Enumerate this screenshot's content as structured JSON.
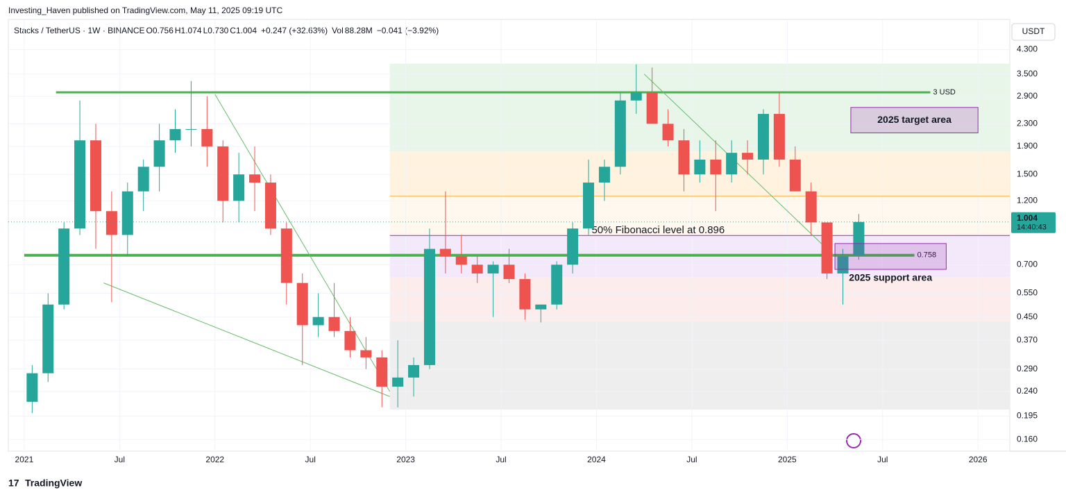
{
  "header": {
    "publisher": "Investing_Haven published on TradingView.com, May 11, 2025 09:19 UTC",
    "symbol": "Stacks / TetherUS · 1W · BINANCE",
    "legend": [
      {
        "k": "O",
        "v": "0.756"
      },
      {
        "k": "H",
        "v": "1.074"
      },
      {
        "k": "L",
        "v": "0.730"
      },
      {
        "k": "C",
        "v": "1.004"
      }
    ],
    "change": "+0.247 (+32.63%)",
    "vol_label": "Vol",
    "vol": "88.28M",
    "vol_change": "−0.041 (−3.92%)",
    "currency": "USDT",
    "countdown": "14:40:43",
    "brand": "TradingView"
  },
  "chart_data": {
    "type": "candlestick",
    "log_scale": true,
    "grid": true,
    "up_color": "#26a69a",
    "down_color": "#ef5350",
    "x": [
      "2021-01",
      "2021-02",
      "2021-03",
      "2021-04",
      "2021-05",
      "2021-06",
      "2021-07",
      "2021-08",
      "2021-09",
      "2021-10",
      "2021-11",
      "2021-12",
      "2022-01",
      "2022-02",
      "2022-03",
      "2022-04",
      "2022-05",
      "2022-06",
      "2022-07",
      "2022-08",
      "2022-09",
      "2022-10",
      "2022-11",
      "2022-12",
      "2023-01",
      "2023-02",
      "2023-03",
      "2023-04",
      "2023-05",
      "2023-06",
      "2023-07",
      "2023-08",
      "2023-09",
      "2023-10",
      "2023-11",
      "2023-12",
      "2024-01",
      "2024-02",
      "2024-03",
      "2024-04",
      "2024-05",
      "2024-06",
      "2024-07",
      "2024-08",
      "2024-09",
      "2024-10",
      "2024-11",
      "2024-12",
      "2025-01",
      "2025-02",
      "2025-03",
      "2025-04",
      "2025-05"
    ],
    "open": [
      0.22,
      0.28,
      0.5,
      0.95,
      2.0,
      1.1,
      0.9,
      1.3,
      1.6,
      2.0,
      2.2,
      2.2,
      1.9,
      1.2,
      1.5,
      1.4,
      0.95,
      0.6,
      0.42,
      0.45,
      0.4,
      0.34,
      0.32,
      0.25,
      0.27,
      0.3,
      0.8,
      0.75,
      0.7,
      0.65,
      0.7,
      0.62,
      0.48,
      0.5,
      0.7,
      0.95,
      1.4,
      1.6,
      2.8,
      3.0,
      2.3,
      2.0,
      1.5,
      1.7,
      1.5,
      1.8,
      1.7,
      2.5,
      1.7,
      1.3,
      1.0,
      0.65,
      0.756
    ],
    "high": [
      0.3,
      0.55,
      1.0,
      2.8,
      2.3,
      1.3,
      1.4,
      1.7,
      2.3,
      2.6,
      3.3,
      2.9,
      2.0,
      1.8,
      1.9,
      1.5,
      1.0,
      0.65,
      0.55,
      0.6,
      0.45,
      0.38,
      0.34,
      0.37,
      0.32,
      0.95,
      1.3,
      0.9,
      0.75,
      0.72,
      0.8,
      0.65,
      0.5,
      0.72,
      1.0,
      1.7,
      1.7,
      3.0,
      3.8,
      3.7,
      2.6,
      2.2,
      2.0,
      2.0,
      2.0,
      2.0,
      2.6,
      3.0,
      1.9,
      1.4,
      1.0,
      0.8,
      1.074
    ],
    "low": [
      0.2,
      0.26,
      0.48,
      0.9,
      0.8,
      0.51,
      0.75,
      1.1,
      1.3,
      1.8,
      1.9,
      1.6,
      1.0,
      1.0,
      1.1,
      0.9,
      0.5,
      0.3,
      0.38,
      0.38,
      0.32,
      0.29,
      0.21,
      0.21,
      0.23,
      0.29,
      0.65,
      0.65,
      0.6,
      0.45,
      0.6,
      0.44,
      0.43,
      0.48,
      0.65,
      0.9,
      1.2,
      1.5,
      2.5,
      2.3,
      1.9,
      1.3,
      1.4,
      1.1,
      1.4,
      1.5,
      1.5,
      1.6,
      1.3,
      0.9,
      0.62,
      0.5,
      0.73
    ],
    "close": [
      0.28,
      0.5,
      0.95,
      2.0,
      1.1,
      0.9,
      1.3,
      1.6,
      2.0,
      2.2,
      2.2,
      1.9,
      1.2,
      1.5,
      1.4,
      0.95,
      0.6,
      0.42,
      0.45,
      0.4,
      0.34,
      0.32,
      0.25,
      0.27,
      0.3,
      0.8,
      0.75,
      0.7,
      0.65,
      0.7,
      0.62,
      0.48,
      0.5,
      0.7,
      0.95,
      1.4,
      1.6,
      2.8,
      3.0,
      2.3,
      2.0,
      1.5,
      1.7,
      1.5,
      1.8,
      1.7,
      2.5,
      1.7,
      1.3,
      1.0,
      0.65,
      0.75,
      1.004
    ],
    "xlim": [
      "2020-12",
      "2026-03"
    ],
    "xticks": [
      {
        "value": "2021-01",
        "label": "2021"
      },
      {
        "value": "2021-07",
        "label": "Jul"
      },
      {
        "value": "2022-01",
        "label": "2022"
      },
      {
        "value": "2022-07",
        "label": "Jul"
      },
      {
        "value": "2023-01",
        "label": "2023"
      },
      {
        "value": "2023-07",
        "label": "Jul"
      },
      {
        "value": "2024-01",
        "label": "2024"
      },
      {
        "value": "2024-07",
        "label": "Jul"
      },
      {
        "value": "2025-01",
        "label": "2025"
      },
      {
        "value": "2025-07",
        "label": "Jul"
      },
      {
        "value": "2026-01",
        "label": "2026"
      }
    ],
    "ylim": [
      0.145,
      5.55
    ],
    "yticks": [
      {
        "value": 4.3,
        "label": "4.300"
      },
      {
        "value": 3.5,
        "label": "3.500"
      },
      {
        "value": 2.9,
        "label": "2.900"
      },
      {
        "value": 2.3,
        "label": "2.300"
      },
      {
        "value": 1.9,
        "label": "1.900"
      },
      {
        "value": 1.5,
        "label": "1.500"
      },
      {
        "value": 1.2,
        "label": "1.200"
      },
      {
        "value": 0.7,
        "label": "0.700"
      },
      {
        "value": 0.55,
        "label": "0.550"
      },
      {
        "value": 0.45,
        "label": "0.450"
      },
      {
        "value": 0.37,
        "label": "0.370"
      },
      {
        "value": 0.29,
        "label": "0.290"
      },
      {
        "value": 0.24,
        "label": "0.240"
      },
      {
        "value": 0.195,
        "label": "0.195"
      },
      {
        "value": 0.16,
        "label": "0.160"
      }
    ],
    "last_price": 1.004,
    "fib_start": "2022-12",
    "fib_zones": [
      {
        "top": 3.82,
        "bottom": 1.82,
        "color": "#e8f5e9"
      },
      {
        "top": 1.82,
        "bottom": 1.25,
        "color": "#fff3e0"
      },
      {
        "top": 1.25,
        "bottom": 0.896,
        "color": "#fff8ee"
      },
      {
        "top": 0.896,
        "bottom": 0.63,
        "color": "#f3e9fb"
      },
      {
        "top": 0.63,
        "bottom": 0.434,
        "color": "#fdecec"
      },
      {
        "top": 0.434,
        "bottom": 0.206,
        "color": "#eeeeee"
      }
    ],
    "levels": [
      {
        "value": 3,
        "label": "3 USD",
        "from": "2021-03",
        "to": "2025-10",
        "color": "#4caf50",
        "width": 3
      },
      {
        "value": 0.758,
        "from": "2021-01",
        "to": "2025-09",
        "color": "#4caf50",
        "width": 4
      },
      {
        "value": 1.25,
        "from": "2022-12",
        "to": "2026-03",
        "color": "#ffb74d",
        "width": 1
      },
      {
        "value": 0.896,
        "text": "50% Fibonacci level at 0.896",
        "from": "2022-12",
        "to": "2026-03",
        "color": "#9c27b0",
        "width": 1
      }
    ],
    "trend_lines": [
      {
        "points": [
          [
            "2022-01",
            2.95
          ],
          [
            "2022-12",
            0.24
          ]
        ]
      },
      {
        "points": [
          [
            "2021-06",
            0.6
          ],
          [
            "2022-12",
            0.23
          ]
        ]
      },
      {
        "points": [
          [
            "2024-04",
            3.5
          ],
          [
            "2025-04",
            0.75
          ]
        ]
      }
    ],
    "boxes": [
      {
        "text": "2025 target area",
        "from": "2025-05",
        "to": "2026-01",
        "top": 2.64,
        "bottom": 2.13,
        "label_inside": true
      },
      {
        "text": "2025 support area",
        "from": "2025-04",
        "to": "2025-11",
        "top": 0.837,
        "bottom": 0.673,
        "label_inside": false
      }
    ]
  }
}
